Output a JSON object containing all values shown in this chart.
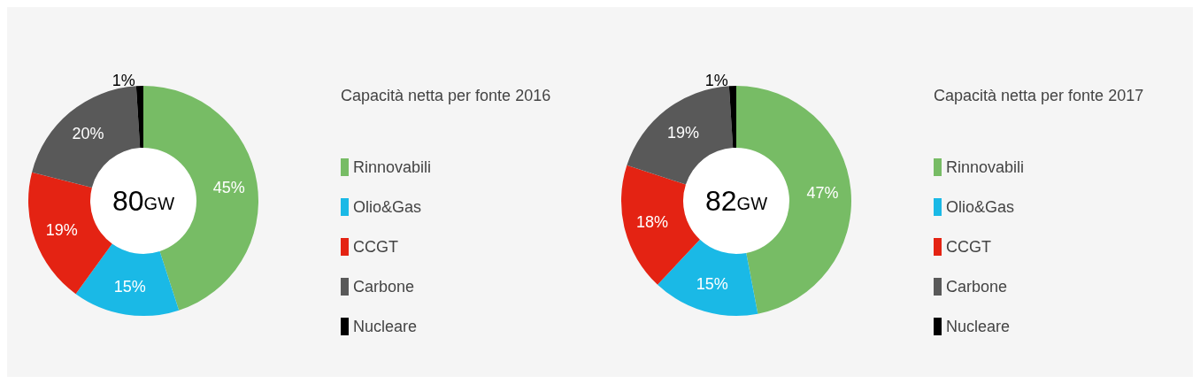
{
  "chart_data": [
    {
      "type": "donut",
      "title": "Capacità netta per fonte 2016",
      "categories": [
        "Rinnovabili",
        "Olio&Gas",
        "CCGT",
        "Carbone",
        "Nucleare"
      ],
      "values": [
        45,
        15,
        19,
        20,
        1
      ],
      "colors": [
        "#77bc65",
        "#1ab9e6",
        "#e42313",
        "#595959",
        "#000000"
      ],
      "value_labels": [
        "45%",
        "15%",
        "19%",
        "20%",
        "1%"
      ],
      "annotations": [
        "80GW"
      ],
      "legend": "right"
    },
    {
      "type": "donut",
      "title": "Capacità netta per fonte 2017",
      "categories": [
        "Rinnovabili",
        "Olio&Gas",
        "CCGT",
        "Carbone",
        "Nucleare"
      ],
      "values": [
        47,
        15,
        18,
        19,
        1
      ],
      "colors": [
        "#77bc65",
        "#1ab9e6",
        "#e42313",
        "#595959",
        "#000000"
      ],
      "value_labels": [
        "47%",
        "15%",
        "18%",
        "19%",
        "1%"
      ],
      "annotations": [
        "82GW"
      ],
      "legend": "right"
    }
  ]
}
